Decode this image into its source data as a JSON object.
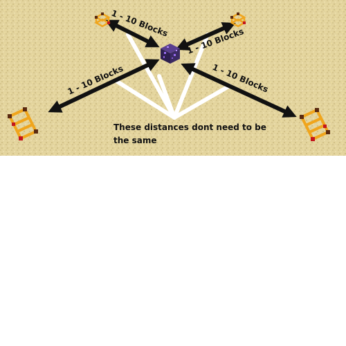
{
  "colors": {
    "ground": "#e3d49e",
    "ground_dark": "#d2c187",
    "arrow": "#111111",
    "pointer": "#ffffff",
    "block": "#3b2a63",
    "block_spot": "#9a6ef0",
    "frame_gold": "#f0a51c",
    "frame_dark": "#5a2a10",
    "frame_red": "#c4161c"
  },
  "labels": {
    "top_left": "1 - 10 Blocks",
    "top_right": "1 - 10 Blocks",
    "mid_left": "1 - 10 Blocks",
    "mid_right": "1 - 10 Blocks"
  },
  "note": {
    "line1": "These distances dont need to be",
    "line2": "the same"
  },
  "icons": {
    "center": "obsidian-spawner-block-icon",
    "small_left": "small-frame-icon",
    "small_right": "small-frame-icon",
    "ladder_left": "ladder-frame-icon",
    "ladder_right": "ladder-frame-icon"
  }
}
